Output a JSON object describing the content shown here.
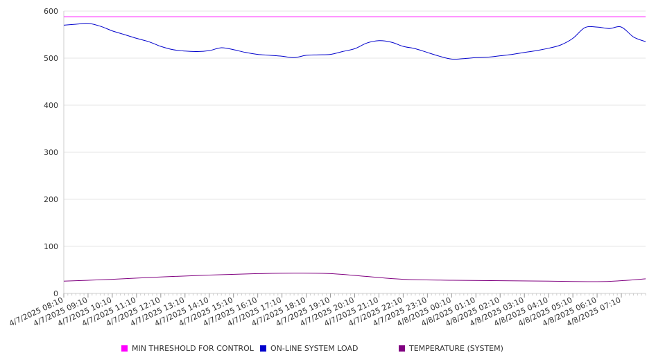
{
  "chart_data": {
    "type": "line",
    "title": "",
    "xlabel": "",
    "ylabel": "",
    "ylim": [
      0,
      600
    ],
    "y_ticks": [
      "0",
      "100",
      "200",
      "300",
      "400",
      "500",
      "600"
    ],
    "grid": "horizontal",
    "legend_position": "bottom",
    "x_start": "4/7/2025 08:10",
    "x_end": "4/8/2025 08:10",
    "x_tick_labels": [
      "4/7/2025 08:10",
      "4/7/2025 09:10",
      "4/7/2025 10:10",
      "4/7/2025 11:10",
      "4/7/2025 12:10",
      "4/7/2025 13:10",
      "4/7/2025 14:10",
      "4/7/2025 15:10",
      "4/7/2025 16:10",
      "4/7/2025 17:10",
      "4/7/2025 18:10",
      "4/7/2025 19:10",
      "4/7/2025 20:10",
      "4/7/2025 21:10",
      "4/7/2025 22:10",
      "4/7/2025 23:10",
      "4/8/2025 00:10",
      "4/8/2025 01:10",
      "4/8/2025 02:10",
      "4/8/2025 03:10",
      "4/8/2025 04:10",
      "4/8/2025 05:10",
      "4/8/2025 06:10",
      "4/8/2025 07:10"
    ],
    "series": [
      {
        "name": "MIN THRESHOLD FOR CONTROL",
        "color": "#ff00ff",
        "x": [
          "4/7/2025 08:10",
          "4/8/2025 08:10"
        ],
        "values": [
          588,
          588
        ]
      },
      {
        "name": "ON-LINE SYSTEM LOAD",
        "color": "#0000cc",
        "x": [
          "4/7/2025 08:10",
          "4/7/2025 08:40",
          "4/7/2025 09:10",
          "4/7/2025 09:40",
          "4/7/2025 10:10",
          "4/7/2025 10:40",
          "4/7/2025 11:10",
          "4/7/2025 11:40",
          "4/7/2025 12:10",
          "4/7/2025 12:40",
          "4/7/2025 13:10",
          "4/7/2025 13:40",
          "4/7/2025 14:10",
          "4/7/2025 14:40",
          "4/7/2025 15:10",
          "4/7/2025 15:40",
          "4/7/2025 16:10",
          "4/7/2025 16:40",
          "4/7/2025 17:10",
          "4/7/2025 17:40",
          "4/7/2025 18:10",
          "4/7/2025 18:40",
          "4/7/2025 19:10",
          "4/7/2025 19:40",
          "4/7/2025 20:10",
          "4/7/2025 20:40",
          "4/7/2025 21:10",
          "4/7/2025 21:40",
          "4/7/2025 22:10",
          "4/7/2025 22:40",
          "4/7/2025 23:10",
          "4/7/2025 23:40",
          "4/8/2025 00:10",
          "4/8/2025 00:40",
          "4/8/2025 01:10",
          "4/8/2025 01:40",
          "4/8/2025 02:10",
          "4/8/2025 02:40",
          "4/8/2025 03:10",
          "4/8/2025 03:40",
          "4/8/2025 04:10",
          "4/8/2025 04:40",
          "4/8/2025 05:10",
          "4/8/2025 05:40",
          "4/8/2025 06:10",
          "4/8/2025 06:40",
          "4/8/2025 07:10",
          "4/8/2025 07:40",
          "4/8/2025 08:10"
        ],
        "values": [
          570,
          572,
          574,
          568,
          558,
          550,
          542,
          535,
          525,
          518,
          515,
          514,
          516,
          522,
          518,
          512,
          508,
          506,
          504,
          501,
          506,
          507,
          508,
          514,
          520,
          532,
          537,
          534,
          525,
          520,
          512,
          504,
          498,
          499,
          501,
          502,
          505,
          508,
          512,
          516,
          521,
          528,
          542,
          565,
          566,
          563,
          566,
          545,
          535
        ]
      },
      {
        "name": "TEMPERATURE (SYSTEM)",
        "color": "#800080",
        "x": [
          "4/7/2025 08:10",
          "4/7/2025 10:10",
          "4/7/2025 12:10",
          "4/7/2025 14:10",
          "4/7/2025 16:10",
          "4/7/2025 17:40",
          "4/7/2025 19:10",
          "4/7/2025 20:40",
          "4/7/2025 22:10",
          "4/8/2025 00:10",
          "4/8/2025 02:10",
          "4/8/2025 04:10",
          "4/8/2025 06:10",
          "4/8/2025 07:10",
          "4/8/2025 08:10"
        ],
        "values": [
          26,
          30,
          35,
          39,
          42,
          43,
          42,
          36,
          30,
          28,
          27,
          26,
          25,
          27,
          31
        ]
      }
    ]
  }
}
